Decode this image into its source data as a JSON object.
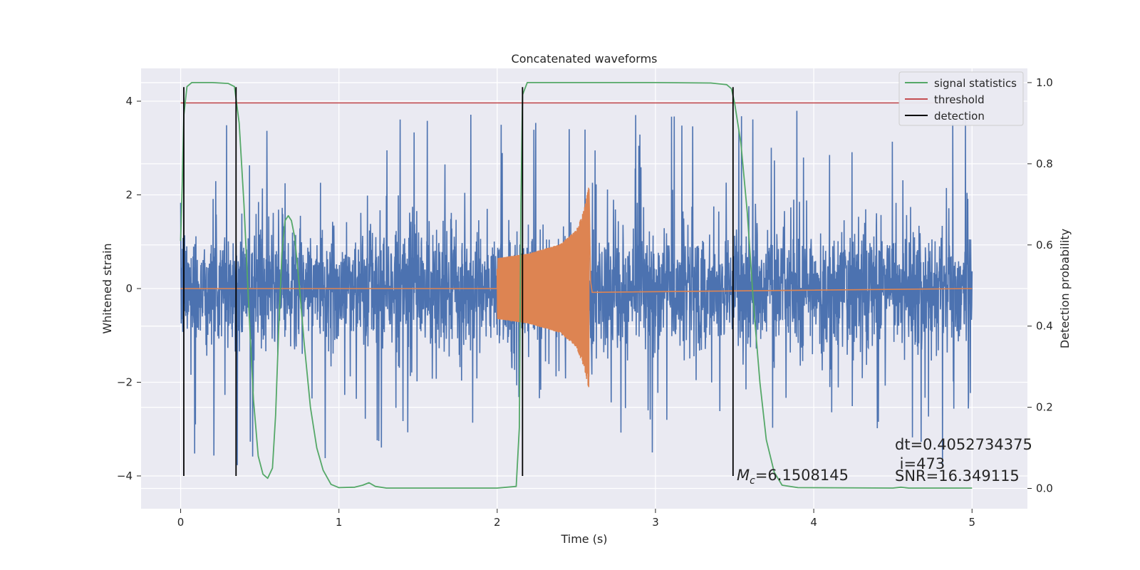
{
  "chart_data": {
    "type": "line",
    "title": "Concatenated waveforms",
    "xlabel": "Time (s)",
    "ylabel": "Whitened strain",
    "ylabel_right": "Detection probability",
    "xlim": [
      -0.25,
      5.35
    ],
    "ylim": [
      -4.7,
      4.7
    ],
    "ylim_right": [
      -0.05,
      1.035
    ],
    "x_ticks": [
      0,
      1,
      2,
      3,
      4,
      5
    ],
    "y_ticks": [
      -4,
      -2,
      0,
      2,
      4
    ],
    "y_ticks_right": [
      0.0,
      0.2,
      0.4,
      0.6,
      0.8,
      1.0
    ],
    "x_tick_labels": [
      "0",
      "1",
      "2",
      "3",
      "4",
      "5"
    ],
    "y_tick_labels": [
      "−4",
      "−2",
      "0",
      "2",
      "4"
    ],
    "y_tick_labels_right": [
      "0.0",
      "0.2",
      "0.4",
      "0.6",
      "0.8",
      "1.0"
    ],
    "grid": true,
    "legend_position": "top-right",
    "series": [
      {
        "role": "whitened_strain_noise",
        "color": "#4c72b0",
        "axis": "left",
        "x_range": [
          0,
          5
        ],
        "amplitude_typical": 1.2,
        "amplitude_peak": 3.8
      },
      {
        "role": "injected_waveform",
        "color": "#dd8452",
        "axis": "left",
        "x_range": [
          2.0,
          2.58
        ],
        "envelope": [
          {
            "x": 2.0,
            "y": 0.65
          },
          {
            "x": 2.2,
            "y": 0.75
          },
          {
            "x": 2.4,
            "y": 0.95
          },
          {
            "x": 2.5,
            "y": 1.25
          },
          {
            "x": 2.55,
            "y": 1.7
          },
          {
            "x": 2.58,
            "y": 2.2
          }
        ]
      },
      {
        "name": "signal statistics",
        "color": "#55a868",
        "axis": "right",
        "points": [
          [
            0.0,
            0.61
          ],
          [
            0.01,
            0.75
          ],
          [
            0.02,
            0.92
          ],
          [
            0.04,
            0.99
          ],
          [
            0.07,
            1.0
          ],
          [
            0.2,
            1.0
          ],
          [
            0.3,
            0.998
          ],
          [
            0.34,
            0.99
          ],
          [
            0.37,
            0.9
          ],
          [
            0.4,
            0.7
          ],
          [
            0.43,
            0.45
          ],
          [
            0.46,
            0.22
          ],
          [
            0.49,
            0.08
          ],
          [
            0.52,
            0.035
          ],
          [
            0.55,
            0.025
          ],
          [
            0.58,
            0.05
          ],
          [
            0.6,
            0.18
          ],
          [
            0.62,
            0.4
          ],
          [
            0.64,
            0.58
          ],
          [
            0.66,
            0.66
          ],
          [
            0.68,
            0.672
          ],
          [
            0.7,
            0.66
          ],
          [
            0.72,
            0.62
          ],
          [
            0.75,
            0.5
          ],
          [
            0.78,
            0.36
          ],
          [
            0.82,
            0.2
          ],
          [
            0.86,
            0.1
          ],
          [
            0.9,
            0.045
          ],
          [
            0.95,
            0.01
          ],
          [
            1.0,
            0.002
          ],
          [
            1.1,
            0.003
          ],
          [
            1.15,
            0.008
          ],
          [
            1.19,
            0.014
          ],
          [
            1.23,
            0.005
          ],
          [
            1.3,
            0.001
          ],
          [
            2.0,
            0.001
          ],
          [
            2.12,
            0.005
          ],
          [
            2.14,
            0.15
          ],
          [
            2.15,
            0.7
          ],
          [
            2.16,
            0.97
          ],
          [
            2.19,
            1.0
          ],
          [
            3.0,
            1.0
          ],
          [
            3.35,
            0.999
          ],
          [
            3.45,
            0.995
          ],
          [
            3.48,
            0.985
          ],
          [
            3.5,
            0.95
          ],
          [
            3.54,
            0.85
          ],
          [
            3.58,
            0.68
          ],
          [
            3.62,
            0.45
          ],
          [
            3.66,
            0.26
          ],
          [
            3.7,
            0.12
          ],
          [
            3.75,
            0.04
          ],
          [
            3.8,
            0.008
          ],
          [
            3.9,
            0.002
          ],
          [
            4.5,
            0.001
          ],
          [
            4.55,
            0.003
          ],
          [
            4.6,
            0.001
          ],
          [
            5.0,
            0.001
          ]
        ]
      },
      {
        "name": "threshold",
        "color": "#c44e52",
        "axis": "right",
        "value": 0.95,
        "x_range": [
          0,
          5
        ]
      },
      {
        "name": "detection",
        "color": "#000000",
        "axis": "left",
        "x_values": [
          0.02,
          0.35,
          2.16,
          3.49
        ],
        "y_range": [
          -4.0,
          4.3
        ]
      }
    ],
    "annotations": {
      "mc_symbol": "M",
      "mc_subscript": "c",
      "mc_value": "=6.1508145",
      "dt_text": "dt=0.4052734375",
      "i_text": " i=473",
      "snr_text": "SNR=16.349115"
    }
  }
}
